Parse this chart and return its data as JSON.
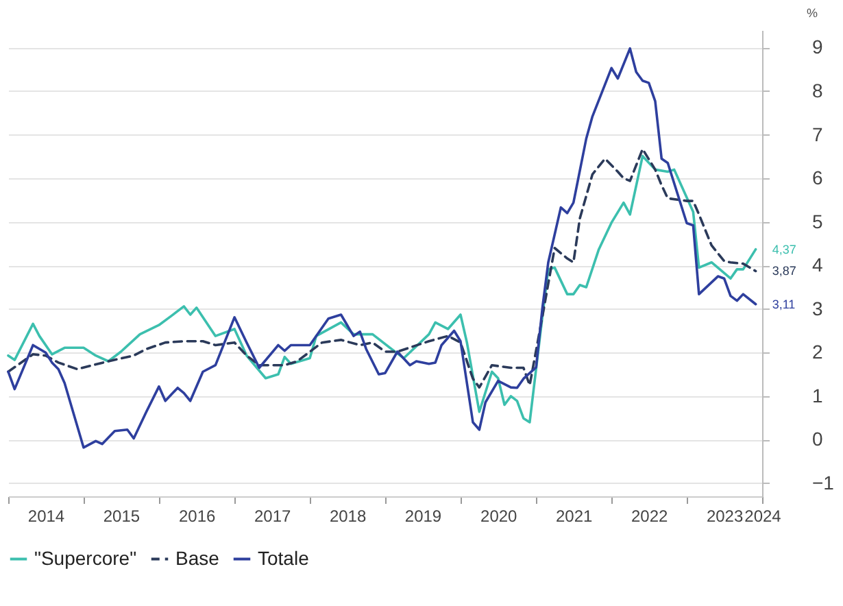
{
  "chart_data": {
    "type": "line",
    "ylabel": "%",
    "xlim": [
      "2014-01",
      "2024-01"
    ],
    "ylim": [
      -1.3,
      9.4
    ],
    "yticks": [
      -1,
      0,
      1,
      2,
      3,
      4,
      5,
      6,
      7,
      8,
      9
    ],
    "xticks": [
      {
        "value": "2014-01",
        "label": null
      },
      {
        "value": "2014-07",
        "label": "2014"
      },
      {
        "value": "2015-01",
        "label": null
      },
      {
        "value": "2015-07",
        "label": "2015"
      },
      {
        "value": "2016-01",
        "label": null
      },
      {
        "value": "2016-07",
        "label": "2016"
      },
      {
        "value": "2017-01",
        "label": null
      },
      {
        "value": "2017-07",
        "label": "2017"
      },
      {
        "value": "2018-01",
        "label": null
      },
      {
        "value": "2018-07",
        "label": "2018"
      },
      {
        "value": "2019-01",
        "label": null
      },
      {
        "value": "2019-07",
        "label": "2019"
      },
      {
        "value": "2020-01",
        "label": null
      },
      {
        "value": "2020-07",
        "label": "2020"
      },
      {
        "value": "2021-01",
        "label": null
      },
      {
        "value": "2021-07",
        "label": "2021"
      },
      {
        "value": "2022-01",
        "label": null
      },
      {
        "value": "2022-07",
        "label": "2022"
      },
      {
        "value": "2023-01",
        "label": null
      },
      {
        "value": "2023-07",
        "label": "2023"
      },
      {
        "value": "2024-01",
        "label": "2024"
      }
    ],
    "grid": "y",
    "legend": "bottom",
    "series": [
      {
        "name": "\"Supercore\"",
        "color": "#3cbfae",
        "line_style": "solid",
        "x": [
          "2014-01",
          "2014-02",
          "2014-05",
          "2014-06",
          "2014-08",
          "2014-10",
          "2015-01",
          "2015-03",
          "2015-05",
          "2015-07",
          "2015-10",
          "2016-01",
          "2016-03",
          "2016-05",
          "2016-06",
          "2016-07",
          "2016-10",
          "2017-01",
          "2017-03",
          "2017-06",
          "2017-08",
          "2017-09",
          "2017-10",
          "2018-01",
          "2018-02",
          "2018-06",
          "2018-08",
          "2018-11",
          "2019-02",
          "2019-04",
          "2019-08",
          "2019-09",
          "2019-11",
          "2020-01",
          "2020-02",
          "2020-04",
          "2020-06",
          "2020-07",
          "2020-08",
          "2020-09",
          "2020-10",
          "2020-11",
          "2020-12",
          "2021-02",
          "2021-03",
          "2021-04",
          "2021-06",
          "2021-07",
          "2021-08",
          "2021-09",
          "2021-11",
          "2022-01",
          "2022-03",
          "2022-04",
          "2022-06",
          "2022-08",
          "2022-10",
          "2022-11",
          "2023-02",
          "2023-03",
          "2023-05",
          "2023-08",
          "2023-09",
          "2023-10",
          "2023-12"
        ],
        "values": [
          1.93,
          1.83,
          2.66,
          2.38,
          1.96,
          2.11,
          2.11,
          1.93,
          1.8,
          2.02,
          2.42,
          2.63,
          2.84,
          3.06,
          2.87,
          3.03,
          2.38,
          2.54,
          1.93,
          1.41,
          1.5,
          1.9,
          1.74,
          1.87,
          2.38,
          2.69,
          2.42,
          2.42,
          2.08,
          1.87,
          2.42,
          2.69,
          2.54,
          2.87,
          2.23,
          0.64,
          1.56,
          1.41,
          0.8,
          1.0,
          0.89,
          0.49,
          0.4,
          2.84,
          3.91,
          3.95,
          3.34,
          3.34,
          3.55,
          3.5,
          4.37,
          4.98,
          5.44,
          5.17,
          6.51,
          6.2,
          6.15,
          6.2,
          5.23,
          3.95,
          4.07,
          3.7,
          3.91,
          3.91,
          4.37
        ]
      },
      {
        "name": "Base",
        "color": "#2b3a5a",
        "line_style": "dashed",
        "x": [
          "2014-01",
          "2014-05",
          "2014-07",
          "2014-09",
          "2014-12",
          "2015-05",
          "2015-09",
          "2015-11",
          "2016-02",
          "2016-05",
          "2016-08",
          "2016-10",
          "2017-01",
          "2017-03",
          "2017-05",
          "2017-09",
          "2017-11",
          "2018-03",
          "2018-06",
          "2018-09",
          "2018-11",
          "2019-01",
          "2019-03",
          "2019-08",
          "2019-11",
          "2020-01",
          "2020-03",
          "2020-04",
          "2020-06",
          "2020-09",
          "2020-11",
          "2020-12",
          "2021-02",
          "2021-04",
          "2021-06",
          "2021-07",
          "2021-08",
          "2021-10",
          "2021-12",
          "2022-02",
          "2022-03",
          "2022-04",
          "2022-06",
          "2022-08",
          "2022-09",
          "2022-10",
          "2023-01",
          "2023-02",
          "2023-03",
          "2023-05",
          "2023-07",
          "2023-08",
          "2023-10",
          "2023-12"
        ],
        "values": [
          1.56,
          1.96,
          1.93,
          1.77,
          1.62,
          1.8,
          1.93,
          2.08,
          2.23,
          2.26,
          2.26,
          2.17,
          2.23,
          1.93,
          1.71,
          1.71,
          1.8,
          2.23,
          2.29,
          2.17,
          2.23,
          2.02,
          2.02,
          2.26,
          2.38,
          2.23,
          1.4,
          1.2,
          1.71,
          1.65,
          1.65,
          1.25,
          2.84,
          4.4,
          4.16,
          4.07,
          5.08,
          6.09,
          6.45,
          6.15,
          6.0,
          5.94,
          6.67,
          6.2,
          5.84,
          5.54,
          5.48,
          5.48,
          5.17,
          4.46,
          4.1,
          4.07,
          4.04,
          3.87
        ]
      },
      {
        "name": "Totale",
        "color": "#2e3f9e",
        "line_style": "solid",
        "x": [
          "2014-01",
          "2014-02",
          "2014-05",
          "2014-07",
          "2014-08",
          "2014-09",
          "2014-10",
          "2015-01",
          "2015-03",
          "2015-04",
          "2015-06",
          "2015-08",
          "2015-09",
          "2015-11",
          "2016-01",
          "2016-02",
          "2016-04",
          "2016-05",
          "2016-06",
          "2016-08",
          "2016-10",
          "2017-01",
          "2017-03",
          "2017-05",
          "2017-08",
          "2017-09",
          "2017-10",
          "2018-01",
          "2018-04",
          "2018-06",
          "2018-08",
          "2018-09",
          "2018-10",
          "2018-12",
          "2019-01",
          "2019-03",
          "2019-05",
          "2019-06",
          "2019-08",
          "2019-09",
          "2019-10",
          "2019-12",
          "2020-01",
          "2020-03",
          "2020-04",
          "2020-05",
          "2020-07",
          "2020-09",
          "2020-10",
          "2020-11",
          "2021-01",
          "2021-02",
          "2021-03",
          "2021-05",
          "2021-06",
          "2021-07",
          "2021-09",
          "2021-10",
          "2022-01",
          "2022-02",
          "2022-04",
          "2022-05",
          "2022-06",
          "2022-07",
          "2022-08",
          "2022-09",
          "2022-10",
          "2023-01",
          "2023-02",
          "2023-03",
          "2023-06",
          "2023-07",
          "2023-08",
          "2023-09",
          "2023-10",
          "2023-12"
        ],
        "values": [
          1.56,
          1.16,
          2.17,
          2.0,
          1.77,
          1.62,
          1.3,
          -0.18,
          -0.03,
          -0.1,
          0.2,
          0.23,
          0.03,
          0.64,
          1.22,
          0.89,
          1.19,
          1.07,
          0.89,
          1.56,
          1.71,
          2.81,
          2.23,
          1.65,
          2.17,
          2.04,
          2.17,
          2.17,
          2.78,
          2.87,
          2.38,
          2.48,
          2.08,
          1.5,
          1.53,
          2.02,
          1.71,
          1.8,
          1.74,
          1.77,
          2.17,
          2.5,
          2.26,
          0.4,
          0.23,
          0.86,
          1.35,
          1.2,
          1.19,
          1.4,
          1.66,
          3.04,
          4.07,
          5.33,
          5.2,
          5.44,
          6.91,
          7.42,
          8.53,
          8.29,
          8.98,
          8.44,
          8.24,
          8.19,
          7.77,
          6.45,
          6.35,
          4.97,
          4.92,
          3.34,
          3.75,
          3.7,
          3.3,
          3.19,
          3.34,
          3.11
        ]
      }
    ],
    "annotations": [
      {
        "text": "4,37",
        "x": "2023-12",
        "y": 4.37
      },
      {
        "text": "3,87",
        "x": "2023-12",
        "y": 3.87
      },
      {
        "text": "3,11",
        "x": "2023-12",
        "y": 3.11
      }
    ]
  }
}
